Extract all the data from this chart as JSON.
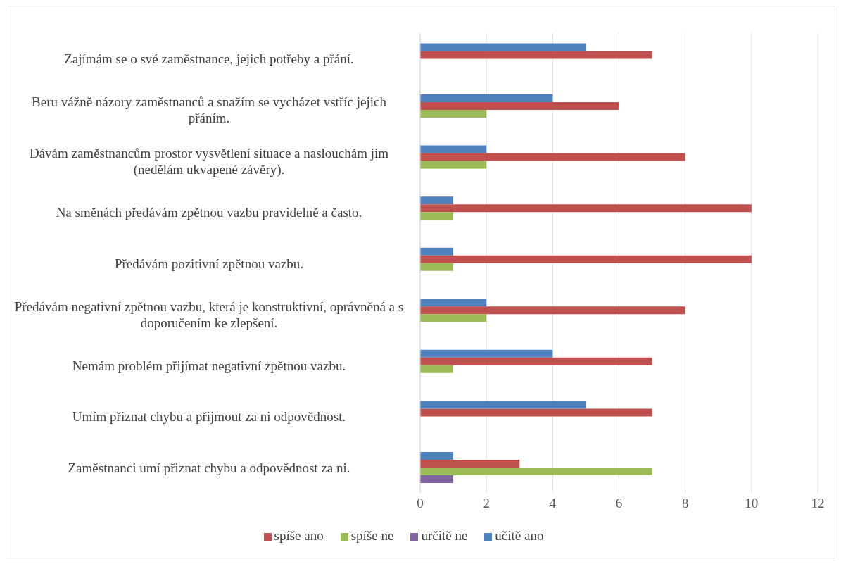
{
  "chart_data": {
    "type": "bar",
    "orientation": "horizontal",
    "categories": [
      "Zajímám se o své zaměstnance, jejich potřeby a přání.",
      "Beru vážně názory zaměstnanců a snažím se vycházet vstříc jejich přáním.",
      "Dávám zaměstnancům prostor vysvětlení situace a naslouchám jim (nedělám ukvapené závěry).",
      "Na směnách předávám zpětnou vazbu pravidelně a často.",
      "Předávám pozitivní zpětnou vazbu.",
      "Předávám negativní zpětnou vazbu, která je konstruktivní, oprávněná a s doporučením ke zlepšení.",
      "Nemám problém přijímat negativní zpětnou vazbu.",
      "Umím přiznat chybu a přijmout za ni odpovědnost.",
      "Zaměstnanci umí přiznat chybu a odpovědnost za ni."
    ],
    "series": [
      {
        "name": "učitě ano",
        "color": "#4f81bd",
        "values": [
          5,
          4,
          2,
          1,
          1,
          2,
          4,
          5,
          1
        ]
      },
      {
        "name": "spíše ano",
        "color": "#c0504d",
        "values": [
          7,
          6,
          8,
          10,
          10,
          8,
          7,
          7,
          3
        ]
      },
      {
        "name": "spíše ne",
        "color": "#9bbb59",
        "values": [
          null,
          2,
          2,
          1,
          1,
          2,
          1,
          null,
          7
        ]
      },
      {
        "name": "určitě ne",
        "color": "#8064a2",
        "values": [
          null,
          null,
          null,
          null,
          null,
          null,
          null,
          null,
          1
        ]
      }
    ],
    "xlim": [
      0,
      12
    ],
    "xticks": [
      0,
      2,
      4,
      6,
      8,
      10,
      12
    ],
    "grid": "x",
    "legend": "bottom"
  }
}
